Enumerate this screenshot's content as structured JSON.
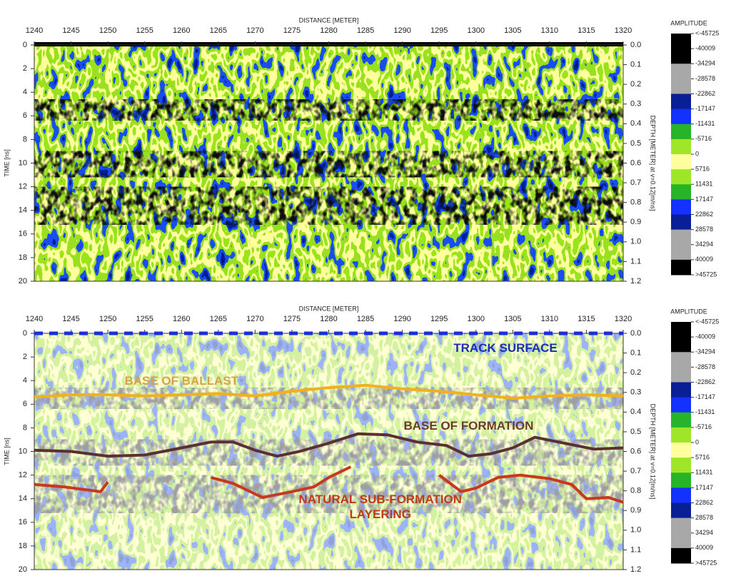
{
  "chart_data": [
    {
      "type": "radargram",
      "faded": false,
      "x_label": "DISTANCE [METER]",
      "y_label": "TIME [ns]",
      "y2_label": "DEPTH [METER] at v=0.12[m/ns]",
      "xlim": [
        1240,
        1320
      ],
      "xticks": [
        1240,
        1245,
        1250,
        1255,
        1260,
        1265,
        1270,
        1275,
        1280,
        1285,
        1290,
        1295,
        1300,
        1305,
        1310,
        1315,
        1320
      ],
      "ylim": [
        0,
        20
      ],
      "y_inverted": true,
      "yticks": [
        0,
        2,
        4,
        6,
        8,
        10,
        12,
        14,
        16,
        18,
        20
      ],
      "y2lim": [
        0,
        1.2
      ],
      "y2ticks": [
        {
          "value": 0,
          "label": "0.0"
        },
        0.1,
        0.2,
        0.3,
        0.4,
        0.5,
        0.6,
        0.7,
        0.8,
        0.9,
        {
          "value": 1,
          "label": "1.0"
        },
        1.1,
        1.2
      ],
      "colorbar": {
        "title": "AMPLITUDE",
        "ticks": [
          {
            "value": -45725,
            "label": "<-45725"
          },
          -40009,
          -34294,
          -28578,
          -22862,
          -17147,
          -11431,
          -5716,
          0,
          5716,
          11431,
          17147,
          22862,
          28578,
          34294,
          40009,
          {
            "value": 45725,
            "label": ">45725"
          }
        ],
        "colors": [
          "#000000",
          "#000000",
          "#a8a8a8",
          "#a8a8a8",
          "#0a1e96",
          "#1432ff",
          "#28b428",
          "#a0e628",
          "#ffffa0",
          "#a0e628",
          "#28b428",
          "#1432ff",
          "#0a1e96",
          "#a8a8a8",
          "#a8a8a8",
          "#000000"
        ]
      }
    },
    {
      "type": "radargram",
      "faded": true,
      "x_label": "DISTANCE [METER]",
      "y_label": "TIME [ns]",
      "y2_label": "DEPTH [METER] at v=0.12[m/ns]",
      "xlim": [
        1240,
        1320
      ],
      "xticks": [
        1240,
        1245,
        1250,
        1255,
        1260,
        1265,
        1270,
        1275,
        1280,
        1285,
        1290,
        1295,
        1300,
        1305,
        1310,
        1315,
        1320
      ],
      "ylim": [
        0,
        20
      ],
      "y_inverted": true,
      "yticks": [
        0,
        2,
        4,
        6,
        8,
        10,
        12,
        14,
        16,
        18,
        20
      ],
      "y2lim": [
        0,
        1.2
      ],
      "y2ticks": [
        {
          "value": 0,
          "label": "0.0"
        },
        0.1,
        0.2,
        0.3,
        0.4,
        0.5,
        0.6,
        0.7,
        0.8,
        0.9,
        {
          "value": 1,
          "label": "1.0"
        },
        1.1,
        1.2
      ],
      "colorbar": {
        "title": "AMPLITUDE",
        "ticks": [
          {
            "value": -45725,
            "label": "<-45725"
          },
          -40009,
          -34294,
          -28578,
          -22862,
          -17147,
          -11431,
          -5716,
          0,
          5716,
          11431,
          17147,
          22862,
          28578,
          34294,
          40009,
          {
            "value": 45725,
            "label": ">45725"
          }
        ],
        "colors": [
          "#000000",
          "#000000",
          "#a8a8a8",
          "#a8a8a8",
          "#0a1e96",
          "#1432ff",
          "#28b428",
          "#a0e628",
          "#ffffa0",
          "#a0e628",
          "#28b428",
          "#1432ff",
          "#0a1e96",
          "#a8a8a8",
          "#a8a8a8",
          "#000000"
        ]
      },
      "series": [
        {
          "name": "TRACK SURFACE",
          "color": "#1a2fd6",
          "label_color": "#1a2fb0",
          "dashed": true,
          "x": [
            1240,
            1320
          ],
          "values": [
            0,
            0
          ]
        },
        {
          "name": "BASE OF BALLAST",
          "color": "#f2b01e",
          "label_color": "#d9a24a",
          "dashed": false,
          "x": [
            1240,
            1245,
            1250,
            1255,
            1260,
            1265,
            1270,
            1275,
            1280,
            1285,
            1290,
            1295,
            1300,
            1305,
            1310,
            1315,
            1320
          ],
          "values": [
            5.4,
            5.2,
            5.2,
            5.3,
            5.2,
            5.1,
            5.3,
            4.9,
            4.6,
            4.4,
            4.7,
            4.9,
            5.2,
            5.5,
            5.3,
            5.2,
            5.3
          ]
        },
        {
          "name": "BASE OF FORMATION",
          "color": "#5c3030",
          "label_color": "#6b3a2a",
          "dashed": false,
          "x": [
            1240,
            1245,
            1250,
            1255,
            1260,
            1264,
            1267,
            1270,
            1273,
            1276,
            1280,
            1284,
            1288,
            1292,
            1296,
            1299,
            1302,
            1305,
            1308,
            1312,
            1316,
            1320
          ],
          "values": [
            9.9,
            10.0,
            10.4,
            10.3,
            9.7,
            9.2,
            9.2,
            9.9,
            10.4,
            10.0,
            9.3,
            8.5,
            8.6,
            9.2,
            9.5,
            10.4,
            10.2,
            9.7,
            8.8,
            9.3,
            9.8,
            9.7
          ]
        },
        {
          "name": "NATURAL SUB-FORMATION LAYERING",
          "color": "#c8381a",
          "label_color": "#c03a18",
          "dashed": false,
          "x": [
            1240,
            1244,
            1249,
            1250,
            null,
            1264,
            1267,
            1271,
            1275,
            1278,
            1280,
            1283,
            null,
            1295,
            1298,
            1300,
            1303,
            1306,
            1310,
            1313,
            1315,
            1318,
            1320
          ],
          "values": [
            12.8,
            13.0,
            13.4,
            12.6,
            null,
            12.2,
            12.7,
            13.9,
            13.4,
            13.0,
            12.2,
            11.3,
            null,
            12.0,
            13.4,
            13.1,
            12.2,
            12.0,
            12.3,
            12.8,
            14.0,
            13.9,
            14.3
          ]
        }
      ]
    }
  ]
}
